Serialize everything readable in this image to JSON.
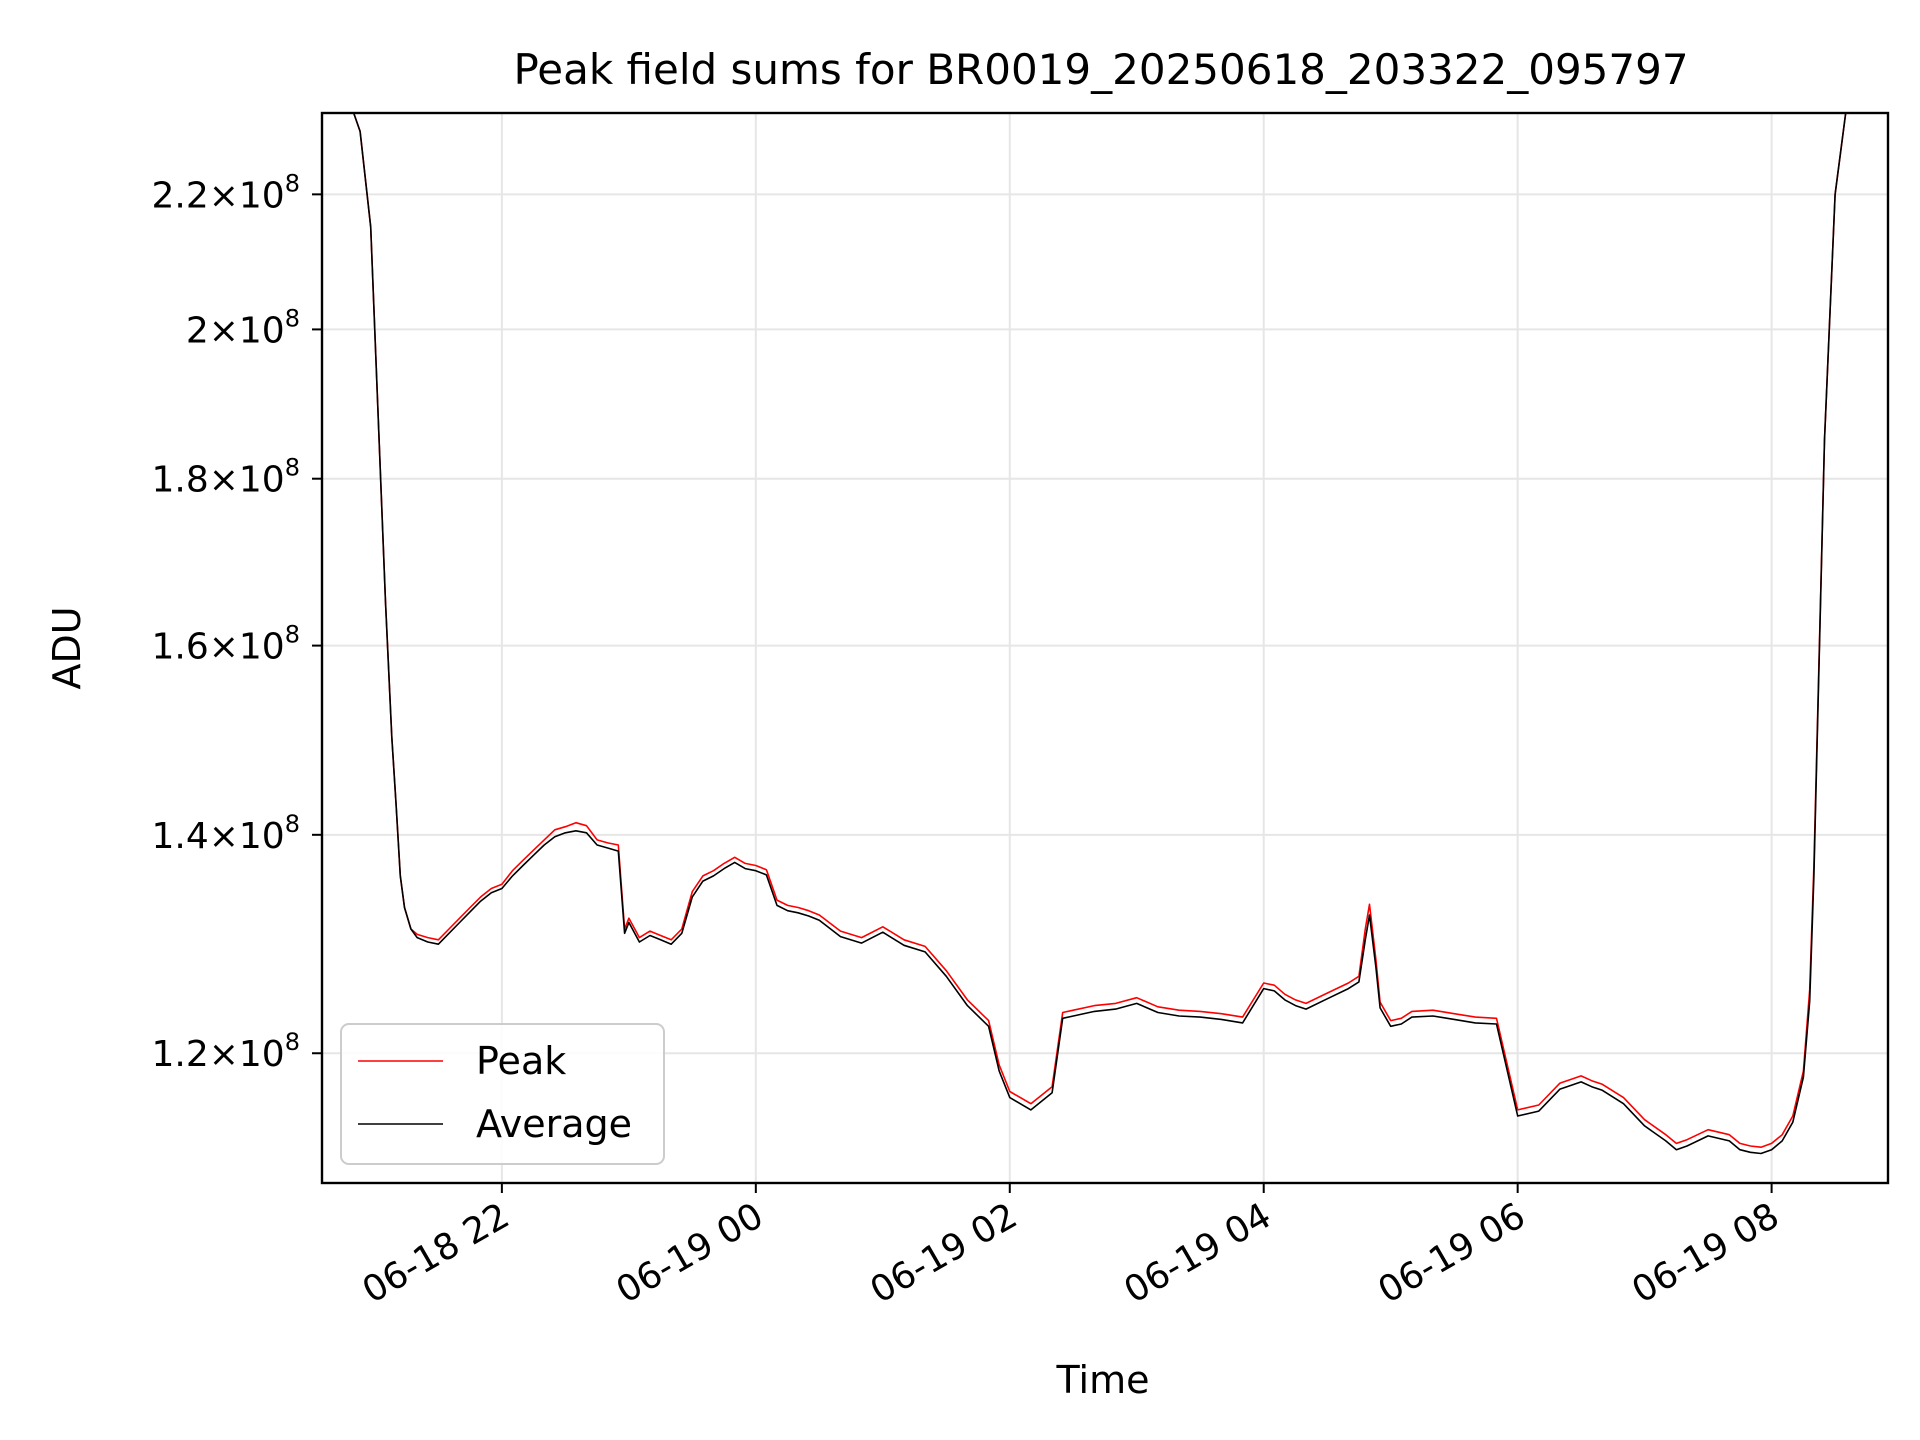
{
  "chart_data": {
    "type": "line",
    "title": "Peak field sums for BR0019_20250618_203322_095797",
    "xlabel": "Time",
    "ylabel": "ADU",
    "y_scale": "log",
    "grid": true,
    "legend_position": "lower-left",
    "xlim": [
      "2025-06-18 20:35",
      "2025-06-19 08:55"
    ],
    "ylim": [
      109500000,
      233000000
    ],
    "x_ticks": [
      {
        "value": "2025-06-18 22:00",
        "label": "06-18 22"
      },
      {
        "value": "2025-06-19 00:00",
        "label": "06-19 00"
      },
      {
        "value": "2025-06-19 02:00",
        "label": "06-19 02"
      },
      {
        "value": "2025-06-19 04:00",
        "label": "06-19 04"
      },
      {
        "value": "2025-06-19 06:00",
        "label": "06-19 06"
      },
      {
        "value": "2025-06-19 08:00",
        "label": "06-19 08"
      }
    ],
    "y_ticks": [
      {
        "value": 120000000,
        "mant": "1.2",
        "exp": "8"
      },
      {
        "value": 140000000,
        "mant": "1.4",
        "exp": "8"
      },
      {
        "value": 160000000,
        "mant": "1.6",
        "exp": "8"
      },
      {
        "value": 180000000,
        "mant": "1.8",
        "exp": "8"
      },
      {
        "value": 200000000,
        "mant": "2",
        "exp": "8"
      },
      {
        "value": 220000000,
        "mant": "2.2",
        "exp": "8"
      }
    ],
    "series": [
      {
        "name": "Peak",
        "color": "#ff0000",
        "x": [
          "2025-06-18 20:35",
          "2025-06-18 20:50",
          "2025-06-18 20:53",
          "2025-06-18 20:58",
          "2025-06-18 21:02",
          "2025-06-18 21:05",
          "2025-06-18 21:08",
          "2025-06-18 21:10",
          "2025-06-18 21:12",
          "2025-06-18 21:14",
          "2025-06-18 21:17",
          "2025-06-18 21:20",
          "2025-06-18 21:25",
          "2025-06-18 21:30",
          "2025-06-18 21:35",
          "2025-06-18 21:40",
          "2025-06-18 21:45",
          "2025-06-18 21:50",
          "2025-06-18 21:55",
          "2025-06-18 22:00",
          "2025-06-18 22:05",
          "2025-06-18 22:10",
          "2025-06-18 22:15",
          "2025-06-18 22:20",
          "2025-06-18 22:25",
          "2025-06-18 22:30",
          "2025-06-18 22:35",
          "2025-06-18 22:40",
          "2025-06-18 22:45",
          "2025-06-18 22:50",
          "2025-06-18 22:55",
          "2025-06-18 22:58",
          "2025-06-18 23:00",
          "2025-06-18 23:05",
          "2025-06-18 23:10",
          "2025-06-18 23:15",
          "2025-06-18 23:20",
          "2025-06-18 23:25",
          "2025-06-18 23:30",
          "2025-06-18 23:35",
          "2025-06-18 23:40",
          "2025-06-18 23:45",
          "2025-06-18 23:50",
          "2025-06-18 23:55",
          "2025-06-19 00:00",
          "2025-06-19 00:05",
          "2025-06-19 00:10",
          "2025-06-19 00:15",
          "2025-06-19 00:20",
          "2025-06-19 00:25",
          "2025-06-19 00:30",
          "2025-06-19 00:40",
          "2025-06-19 00:50",
          "2025-06-19 01:00",
          "2025-06-19 01:10",
          "2025-06-19 01:20",
          "2025-06-19 01:30",
          "2025-06-19 01:40",
          "2025-06-19 01:50",
          "2025-06-19 01:55",
          "2025-06-19 02:00",
          "2025-06-19 02:10",
          "2025-06-19 02:20",
          "2025-06-19 02:25",
          "2025-06-19 02:30",
          "2025-06-19 02:40",
          "2025-06-19 02:50",
          "2025-06-19 03:00",
          "2025-06-19 03:10",
          "2025-06-19 03:20",
          "2025-06-19 03:30",
          "2025-06-19 03:40",
          "2025-06-19 03:50",
          "2025-06-19 04:00",
          "2025-06-19 04:05",
          "2025-06-19 04:10",
          "2025-06-19 04:15",
          "2025-06-19 04:20",
          "2025-06-19 04:30",
          "2025-06-19 04:40",
          "2025-06-19 04:45",
          "2025-06-19 04:48",
          "2025-06-19 04:50",
          "2025-06-19 04:53",
          "2025-06-19 04:55",
          "2025-06-19 05:00",
          "2025-06-19 05:05",
          "2025-06-19 05:10",
          "2025-06-19 05:20",
          "2025-06-19 05:30",
          "2025-06-19 05:40",
          "2025-06-19 05:50",
          "2025-06-19 06:00",
          "2025-06-19 06:10",
          "2025-06-19 06:20",
          "2025-06-19 06:25",
          "2025-06-19 06:30",
          "2025-06-19 06:35",
          "2025-06-19 06:40",
          "2025-06-19 06:50",
          "2025-06-19 07:00",
          "2025-06-19 07:10",
          "2025-06-19 07:15",
          "2025-06-19 07:20",
          "2025-06-19 07:30",
          "2025-06-19 07:40",
          "2025-06-19 07:45",
          "2025-06-19 07:50",
          "2025-06-19 07:55",
          "2025-06-19 08:00",
          "2025-06-19 08:05",
          "2025-06-19 08:10",
          "2025-06-19 08:15",
          "2025-06-19 08:18",
          "2025-06-19 08:20",
          "2025-06-19 08:25",
          "2025-06-19 08:30",
          "2025-06-19 08:35",
          "2025-06-19 08:38",
          "2025-06-19 08:40",
          "2025-06-19 08:55"
        ],
        "values": [
          233000000,
          233000000,
          230000000,
          215000000,
          185000000,
          165000000,
          150000000,
          143000000,
          136000000,
          133000000,
          131000000,
          130500000,
          130200000,
          130000000,
          131000000,
          132000000,
          133000000,
          134000000,
          134800000,
          135200000,
          136500000,
          137500000,
          138500000,
          139500000,
          140500000,
          140800000,
          141200000,
          140900000,
          139500000,
          139200000,
          139000000,
          131000000,
          132000000,
          130200000,
          130800000,
          130400000,
          130000000,
          131000000,
          134500000,
          136000000,
          136500000,
          137200000,
          137800000,
          137200000,
          137000000,
          136600000,
          133700000,
          133200000,
          133000000,
          132700000,
          132300000,
          130800000,
          130200000,
          131200000,
          130000000,
          129400000,
          127200000,
          124600000,
          122800000,
          119000000,
          116800000,
          115800000,
          117200000,
          123500000,
          123700000,
          124100000,
          124300000,
          124800000,
          124000000,
          123700000,
          123600000,
          123400000,
          123100000,
          126100000,
          125900000,
          125100000,
          124600000,
          124300000,
          125200000,
          126100000,
          126700000,
          131000000,
          133300000,
          128200000,
          124400000,
          122800000,
          123000000,
          123600000,
          123700000,
          123400000,
          123100000,
          123000000,
          115300000,
          115700000,
          117500000,
          117800000,
          118100000,
          117700000,
          117400000,
          116300000,
          114500000,
          113300000,
          112600000,
          112900000,
          113700000,
          113300000,
          112600000,
          112400000,
          112300000,
          112600000,
          113300000,
          114800000,
          118500000,
          125500000,
          137000000,
          185000000,
          220000000,
          233000000,
          233000000,
          233000000,
          233000000
        ]
      },
      {
        "name": "Average",
        "color": "#000000",
        "x": [
          "2025-06-18 20:35",
          "2025-06-18 20:50",
          "2025-06-18 20:53",
          "2025-06-18 20:58",
          "2025-06-18 21:02",
          "2025-06-18 21:05",
          "2025-06-18 21:08",
          "2025-06-18 21:10",
          "2025-06-18 21:12",
          "2025-06-18 21:14",
          "2025-06-18 21:17",
          "2025-06-18 21:20",
          "2025-06-18 21:25",
          "2025-06-18 21:30",
          "2025-06-18 21:35",
          "2025-06-18 21:40",
          "2025-06-18 21:45",
          "2025-06-18 21:50",
          "2025-06-18 21:55",
          "2025-06-18 22:00",
          "2025-06-18 22:05",
          "2025-06-18 22:10",
          "2025-06-18 22:15",
          "2025-06-18 22:20",
          "2025-06-18 22:25",
          "2025-06-18 22:30",
          "2025-06-18 22:35",
          "2025-06-18 22:40",
          "2025-06-18 22:45",
          "2025-06-18 22:50",
          "2025-06-18 22:55",
          "2025-06-18 22:58",
          "2025-06-18 23:00",
          "2025-06-18 23:05",
          "2025-06-18 23:10",
          "2025-06-18 23:15",
          "2025-06-18 23:20",
          "2025-06-18 23:25",
          "2025-06-18 23:30",
          "2025-06-18 23:35",
          "2025-06-18 23:40",
          "2025-06-18 23:45",
          "2025-06-18 23:50",
          "2025-06-18 23:55",
          "2025-06-19 00:00",
          "2025-06-19 00:05",
          "2025-06-19 00:10",
          "2025-06-19 00:15",
          "2025-06-19 00:20",
          "2025-06-19 00:25",
          "2025-06-19 00:30",
          "2025-06-19 00:40",
          "2025-06-19 00:50",
          "2025-06-19 01:00",
          "2025-06-19 01:10",
          "2025-06-19 01:20",
          "2025-06-19 01:30",
          "2025-06-19 01:40",
          "2025-06-19 01:50",
          "2025-06-19 01:55",
          "2025-06-19 02:00",
          "2025-06-19 02:10",
          "2025-06-19 02:20",
          "2025-06-19 02:25",
          "2025-06-19 02:30",
          "2025-06-19 02:40",
          "2025-06-19 02:50",
          "2025-06-19 03:00",
          "2025-06-19 03:10",
          "2025-06-19 03:20",
          "2025-06-19 03:30",
          "2025-06-19 03:40",
          "2025-06-19 03:50",
          "2025-06-19 04:00",
          "2025-06-19 04:05",
          "2025-06-19 04:10",
          "2025-06-19 04:15",
          "2025-06-19 04:20",
          "2025-06-19 04:30",
          "2025-06-19 04:40",
          "2025-06-19 04:45",
          "2025-06-19 04:48",
          "2025-06-19 04:50",
          "2025-06-19 04:53",
          "2025-06-19 04:55",
          "2025-06-19 05:00",
          "2025-06-19 05:05",
          "2025-06-19 05:10",
          "2025-06-19 05:20",
          "2025-06-19 05:30",
          "2025-06-19 05:40",
          "2025-06-19 05:50",
          "2025-06-19 06:00",
          "2025-06-19 06:10",
          "2025-06-19 06:20",
          "2025-06-19 06:25",
          "2025-06-19 06:30",
          "2025-06-19 06:35",
          "2025-06-19 06:40",
          "2025-06-19 06:50",
          "2025-06-19 07:00",
          "2025-06-19 07:10",
          "2025-06-19 07:15",
          "2025-06-19 07:20",
          "2025-06-19 07:30",
          "2025-06-19 07:40",
          "2025-06-19 07:45",
          "2025-06-19 07:50",
          "2025-06-19 07:55",
          "2025-06-19 08:00",
          "2025-06-19 08:05",
          "2025-06-19 08:10",
          "2025-06-19 08:15",
          "2025-06-19 08:18",
          "2025-06-19 08:20",
          "2025-06-19 08:25",
          "2025-06-19 08:30",
          "2025-06-19 08:35",
          "2025-06-19 08:38",
          "2025-06-19 08:40",
          "2025-06-19 08:55"
        ],
        "values": [
          233000000,
          233000000,
          230000000,
          215000000,
          185000000,
          165000000,
          150000000,
          143000000,
          136000000,
          133000000,
          131000000,
          130200000,
          129800000,
          129600000,
          130600000,
          131600000,
          132600000,
          133600000,
          134400000,
          134800000,
          136000000,
          137000000,
          138000000,
          139000000,
          139800000,
          140200000,
          140400000,
          140200000,
          139000000,
          138700000,
          138400000,
          130600000,
          131600000,
          129800000,
          130400000,
          130000000,
          129600000,
          130600000,
          134000000,
          135500000,
          136000000,
          136700000,
          137300000,
          136700000,
          136500000,
          136100000,
          133200000,
          132700000,
          132500000,
          132200000,
          131800000,
          130300000,
          129700000,
          130700000,
          129500000,
          128900000,
          126700000,
          124100000,
          122300000,
          118500000,
          116300000,
          115300000,
          116700000,
          123000000,
          123200000,
          123600000,
          123800000,
          124300000,
          123500000,
          123200000,
          123100000,
          122900000,
          122600000,
          125600000,
          125400000,
          124600000,
          124100000,
          123800000,
          124700000,
          125600000,
          126200000,
          130000000,
          132300000,
          127500000,
          123900000,
          122300000,
          122500000,
          123100000,
          123200000,
          122900000,
          122600000,
          122500000,
          114800000,
          115200000,
          117000000,
          117300000,
          117600000,
          117200000,
          116900000,
          115800000,
          114000000,
          112800000,
          112100000,
          112400000,
          113200000,
          112800000,
          112100000,
          111900000,
          111800000,
          112100000,
          112800000,
          114300000,
          118000000,
          124500000,
          136000000,
          185000000,
          220000000,
          233000000,
          233000000,
          233000000,
          233000000
        ]
      }
    ]
  }
}
